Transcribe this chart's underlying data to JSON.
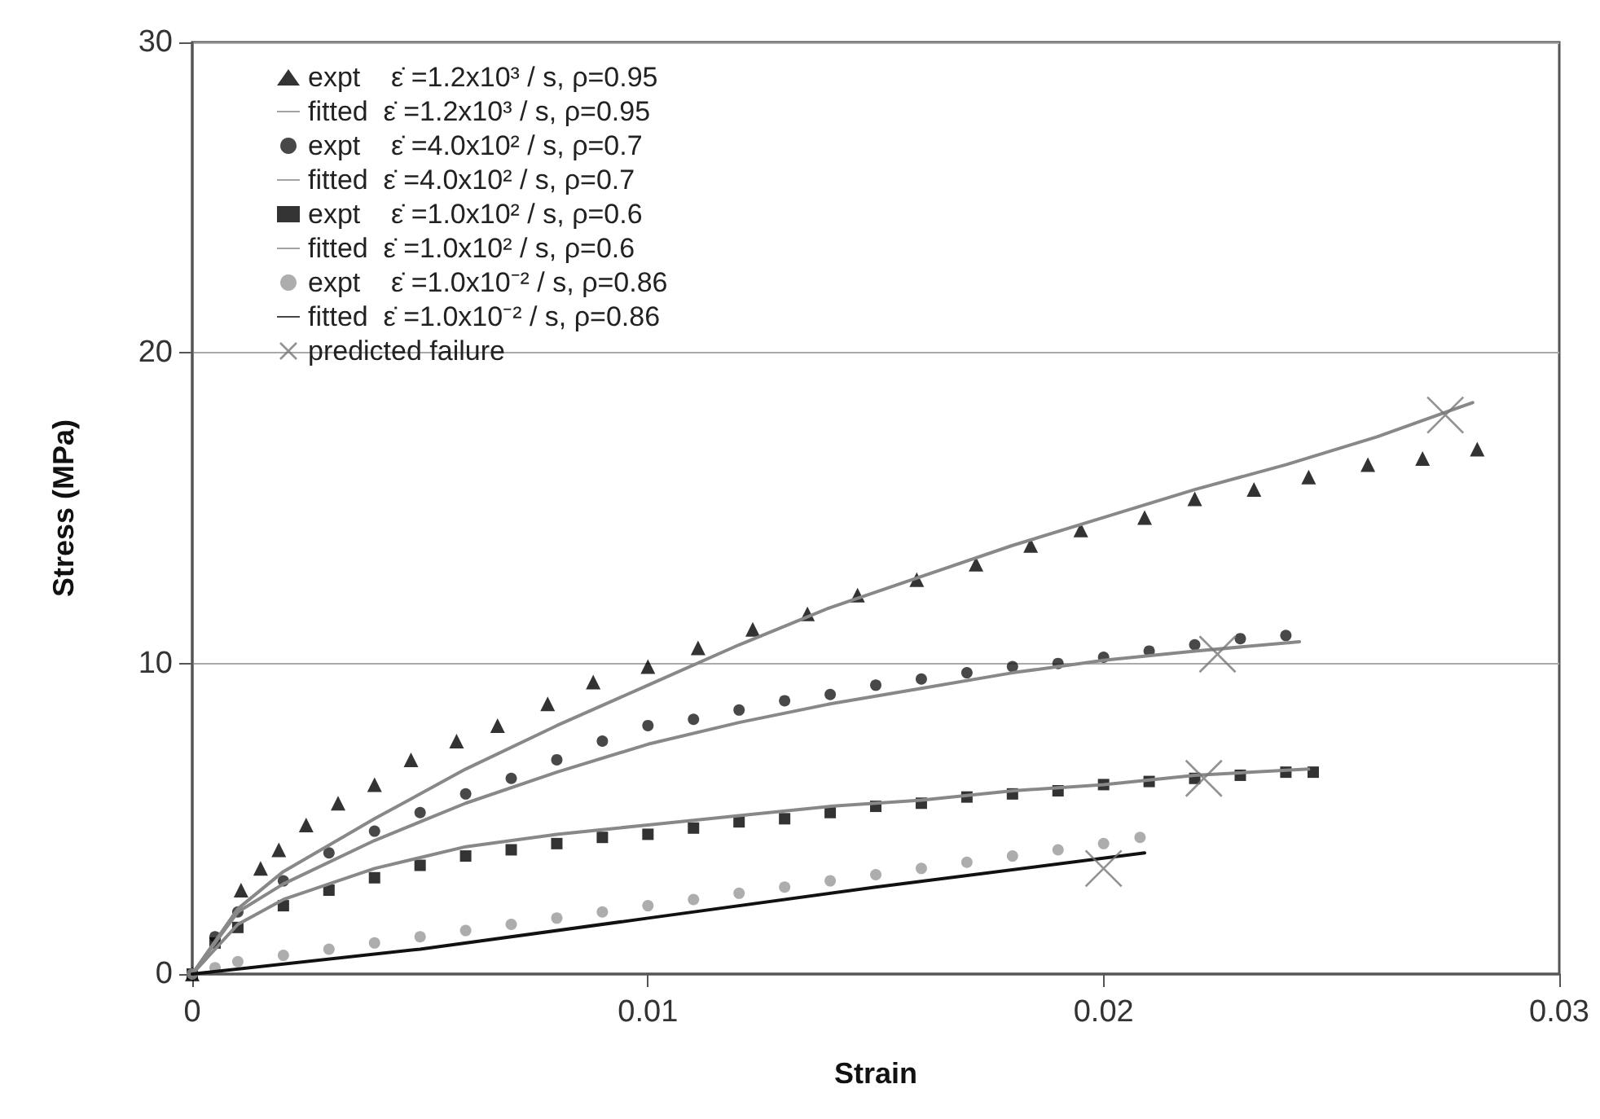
{
  "chart_data": {
    "type": "scatter",
    "xlabel": "Strain",
    "ylabel": "Stress (MPa)",
    "xlim": [
      0,
      0.03
    ],
    "ylim": [
      0,
      30
    ],
    "xticks": [
      0,
      0.01,
      0.02,
      0.03
    ],
    "yticks": [
      0,
      10,
      20,
      30
    ],
    "grid": "y",
    "legend": "top left",
    "series": [
      {
        "name": "expt    ε̇ =1.2x10³ / s, ρ=0.95",
        "marker": "triangle",
        "color": "#000000",
        "x": [
          0,
          0.00107,
          0.0015,
          0.0019,
          0.0025,
          0.0032,
          0.004,
          0.0048,
          0.0058,
          0.0067,
          0.0078,
          0.0088,
          0.01,
          0.0111,
          0.0123,
          0.0135,
          0.0146,
          0.0159,
          0.0172,
          0.0184,
          0.0195,
          0.0209,
          0.022,
          0.0233,
          0.0245,
          0.0258,
          0.027,
          0.0282
        ],
        "values": [
          0,
          2.7,
          3.4,
          4.0,
          4.8,
          5.5,
          6.1,
          6.9,
          7.5,
          8.0,
          8.7,
          9.4,
          9.9,
          10.5,
          11.1,
          11.6,
          12.2,
          12.7,
          13.2,
          13.8,
          14.3,
          14.7,
          15.3,
          15.6,
          16.0,
          16.4,
          16.6,
          16.9
        ]
      },
      {
        "name": "fitted  ε̇ =1.2x10³ / s, ρ=0.95",
        "type": "line",
        "marker": "none",
        "line_style": "solid",
        "color": "#888888",
        "x": [
          0,
          0.001,
          0.002,
          0.004,
          0.006,
          0.008,
          0.01,
          0.012,
          0.014,
          0.016,
          0.018,
          0.02,
          0.022,
          0.024,
          0.026,
          0.0281
        ],
        "values": [
          0,
          2.1,
          3.3,
          5.0,
          6.6,
          8.0,
          9.3,
          10.6,
          11.8,
          12.8,
          13.8,
          14.7,
          15.6,
          16.4,
          17.3,
          18.4
        ]
      },
      {
        "name": "expt    ε̇ =4.0x10² / s, ρ=0.7",
        "marker": "circle",
        "color": "#1a1a1a",
        "x": [
          0,
          0.0005,
          0.001,
          0.002,
          0.003,
          0.004,
          0.005,
          0.006,
          0.007,
          0.008,
          0.009,
          0.01,
          0.011,
          0.012,
          0.013,
          0.014,
          0.015,
          0.016,
          0.017,
          0.018,
          0.019,
          0.02,
          0.021,
          0.022,
          0.023,
          0.024
        ],
        "values": [
          0,
          1.2,
          2.0,
          3.0,
          3.9,
          4.6,
          5.2,
          5.8,
          6.3,
          6.9,
          7.5,
          8.0,
          8.2,
          8.5,
          8.8,
          9.0,
          9.3,
          9.5,
          9.7,
          9.9,
          10.0,
          10.2,
          10.4,
          10.6,
          10.8,
          10.9
        ]
      },
      {
        "name": "fitted  ε̇ =4.0x10² / s, ρ=0.7",
        "type": "line",
        "marker": "none",
        "line_style": "solid",
        "color": "#888888",
        "x": [
          0,
          0.001,
          0.002,
          0.004,
          0.006,
          0.008,
          0.01,
          0.012,
          0.014,
          0.016,
          0.018,
          0.02,
          0.022,
          0.0243
        ],
        "values": [
          0,
          2.0,
          2.9,
          4.3,
          5.5,
          6.5,
          7.4,
          8.1,
          8.7,
          9.2,
          9.7,
          10.1,
          10.4,
          10.7
        ]
      },
      {
        "name": "expt    ε̇ =1.0x10² / s, ρ=0.6",
        "marker": "square",
        "color": "#000000",
        "x": [
          0,
          0.0005,
          0.001,
          0.002,
          0.003,
          0.004,
          0.005,
          0.006,
          0.007,
          0.008,
          0.009,
          0.01,
          0.011,
          0.012,
          0.013,
          0.014,
          0.015,
          0.016,
          0.017,
          0.018,
          0.019,
          0.02,
          0.021,
          0.022,
          0.023,
          0.024,
          0.0246
        ],
        "values": [
          0,
          1.0,
          1.5,
          2.2,
          2.7,
          3.1,
          3.5,
          3.8,
          4.0,
          4.2,
          4.4,
          4.5,
          4.7,
          4.9,
          5.0,
          5.2,
          5.4,
          5.5,
          5.7,
          5.8,
          5.9,
          6.1,
          6.2,
          6.3,
          6.4,
          6.5,
          6.5
        ]
      },
      {
        "name": "fitted  ε̇ =1.0x10² / s, ρ=0.6",
        "type": "line",
        "marker": "none",
        "line_style": "solid",
        "color": "#888888",
        "x": [
          0,
          0.001,
          0.002,
          0.004,
          0.006,
          0.008,
          0.01,
          0.012,
          0.014,
          0.016,
          0.018,
          0.02,
          0.022,
          0.0245
        ],
        "values": [
          0,
          1.6,
          2.4,
          3.4,
          4.1,
          4.5,
          4.8,
          5.1,
          5.4,
          5.6,
          5.9,
          6.1,
          6.4,
          6.6
        ]
      },
      {
        "name": "expt    ε̇ =1.0x10⁻² / s, ρ=0.86",
        "marker": "circle",
        "color": "#999999",
        "x": [
          0,
          0.0005,
          0.001,
          0.002,
          0.003,
          0.004,
          0.005,
          0.006,
          0.007,
          0.008,
          0.009,
          0.01,
          0.011,
          0.012,
          0.013,
          0.014,
          0.015,
          0.016,
          0.017,
          0.018,
          0.019,
          0.02,
          0.0208
        ],
        "values": [
          0,
          0.2,
          0.4,
          0.6,
          0.8,
          1.0,
          1.2,
          1.4,
          1.6,
          1.8,
          2.0,
          2.2,
          2.4,
          2.6,
          2.8,
          3.0,
          3.2,
          3.4,
          3.6,
          3.8,
          4.0,
          4.2,
          4.4
        ]
      },
      {
        "name": "fitted  ε̇ =1.0x10⁻² / s, ρ=0.86",
        "type": "line",
        "marker": "none",
        "line_style": "solid",
        "color": "#111111",
        "x": [
          0,
          0.005,
          0.01,
          0.015,
          0.0209
        ],
        "values": [
          0,
          0.8,
          1.8,
          2.8,
          3.9
        ]
      },
      {
        "name": "predicted failure",
        "marker": "cross",
        "color": "#777777",
        "x": [
          0.0275,
          0.0225,
          0.0222,
          0.02
        ],
        "values": [
          18.0,
          10.3,
          6.3,
          3.4
        ]
      }
    ]
  }
}
